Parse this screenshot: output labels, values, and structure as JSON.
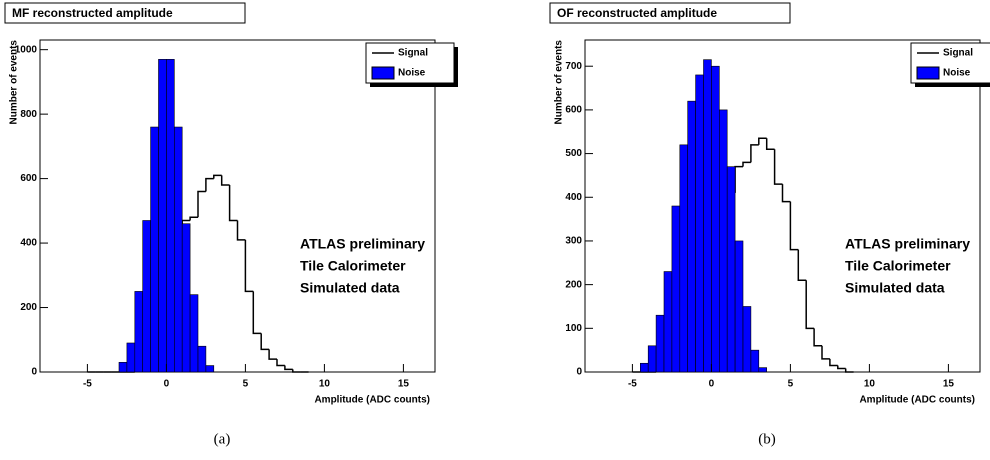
{
  "chart_data": [
    {
      "type": "histogram",
      "title": "MF reconstructed amplitude",
      "caption": "(a)",
      "x_label": "Amplitude (ADC counts)",
      "y_label": "Number of events",
      "annotation": [
        "ATLAS preliminary",
        "Tile Calorimeter",
        "Simulated data"
      ],
      "bins": [
        -5,
        -4.5,
        -4,
        -3.5,
        -3,
        -2.5,
        -2,
        -1.5,
        -1,
        -0.5,
        0,
        0.5,
        1,
        1.5,
        2,
        2.5,
        3,
        3.5,
        4,
        4.5,
        5,
        5.5,
        6,
        6.5,
        7,
        7.5,
        8,
        8.5,
        9
      ],
      "series": [
        {
          "name": "Signal",
          "color": "#000000",
          "values": [
            0,
            0,
            0,
            0,
            0,
            0,
            10,
            40,
            80,
            150,
            270,
            360,
            470,
            480,
            560,
            600,
            610,
            580,
            470,
            410,
            250,
            120,
            70,
            40,
            20,
            8,
            0,
            0
          ]
        },
        {
          "name": "Noise",
          "color": "#0000ff",
          "values": [
            0,
            0,
            0,
            0,
            30,
            90,
            250,
            470,
            760,
            970,
            970,
            760,
            460,
            240,
            80,
            20,
            0,
            0,
            0,
            0,
            0,
            0,
            0,
            0,
            0,
            0,
            0,
            0
          ]
        }
      ],
      "xlim": [
        -8,
        17
      ],
      "xticks": [
        -5,
        0,
        5,
        10,
        15
      ],
      "ylim": [
        0,
        1030
      ],
      "yticks": [
        0,
        200,
        400,
        600,
        800,
        1000
      ]
    },
    {
      "type": "histogram",
      "title": "OF reconstructed amplitude",
      "caption": "(b)",
      "x_label": "Amplitude (ADC counts)",
      "y_label": "Number of events",
      "annotation": [
        "ATLAS preliminary",
        "Tile Calorimeter",
        "Simulated data"
      ],
      "bins": [
        -5,
        -4.5,
        -4,
        -3.5,
        -3,
        -2.5,
        -2,
        -1.5,
        -1,
        -0.5,
        0,
        0.5,
        1,
        1.5,
        2,
        2.5,
        3,
        3.5,
        4,
        4.5,
        5,
        5.5,
        6,
        6.5,
        7,
        7.5,
        8,
        8.5,
        9
      ],
      "series": [
        {
          "name": "Signal",
          "color": "#000000",
          "values": [
            0,
            0,
            0,
            5,
            15,
            30,
            60,
            100,
            150,
            210,
            280,
            390,
            410,
            470,
            480,
            520,
            535,
            510,
            430,
            390,
            280,
            210,
            100,
            60,
            30,
            15,
            8,
            0
          ]
        },
        {
          "name": "Noise",
          "color": "#0000ff",
          "values": [
            0,
            20,
            60,
            130,
            230,
            380,
            520,
            620,
            680,
            715,
            700,
            600,
            470,
            300,
            150,
            50,
            10,
            0,
            0,
            0,
            0,
            0,
            0,
            0,
            0,
            0,
            0,
            0
          ]
        }
      ],
      "xlim": [
        -8,
        17
      ],
      "xticks": [
        -5,
        0,
        5,
        10,
        15
      ],
      "ylim": [
        0,
        760
      ],
      "yticks": [
        0,
        100,
        200,
        300,
        400,
        500,
        600,
        700
      ]
    }
  ]
}
